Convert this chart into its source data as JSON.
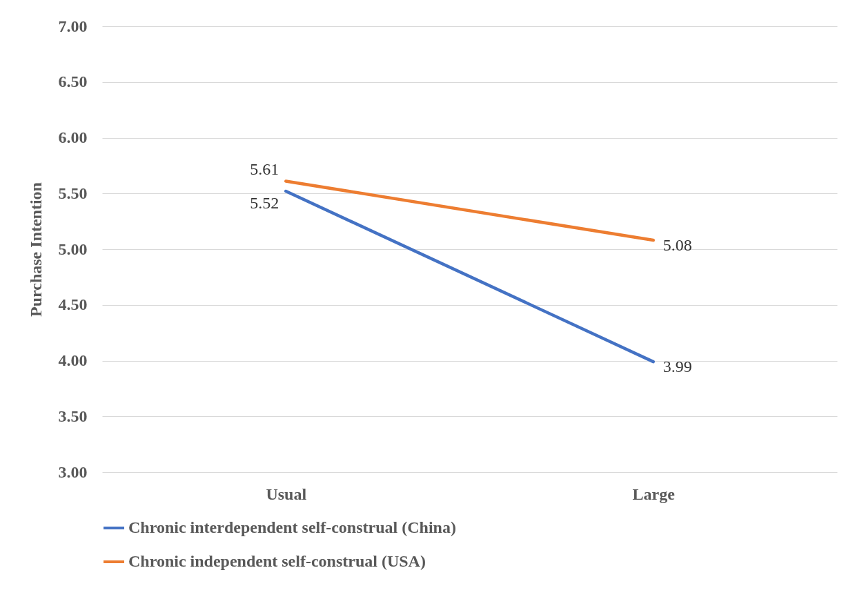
{
  "chart_data": {
    "type": "line",
    "ylabel": "Purchase Intention",
    "categories": [
      "Usual",
      "Large"
    ],
    "series": [
      {
        "name": "Chronic interdependent self-construal (China)",
        "color": "#4472c4",
        "values": [
          5.52,
          3.99
        ]
      },
      {
        "name": "Chronic independent self-construal (USA)",
        "color": "#ed7d31",
        "values": [
          5.61,
          5.08
        ]
      }
    ],
    "ylim": [
      3,
      7
    ],
    "yticks": [
      {
        "value": 3,
        "label": "3.00"
      },
      {
        "value": 3.5,
        "label": "3.50"
      },
      {
        "value": 4,
        "label": "4.00"
      },
      {
        "value": 4.5,
        "label": "4.50"
      },
      {
        "value": 5,
        "label": "5.00"
      },
      {
        "value": 5.5,
        "label": "5.50"
      },
      {
        "value": 6,
        "label": "6.00"
      },
      {
        "value": 6.5,
        "label": "6.50"
      },
      {
        "value": 7,
        "label": "7.00"
      }
    ],
    "grid": "y",
    "legend": "bottom",
    "data_labels": true,
    "marker": "none",
    "line_style": "solid"
  }
}
